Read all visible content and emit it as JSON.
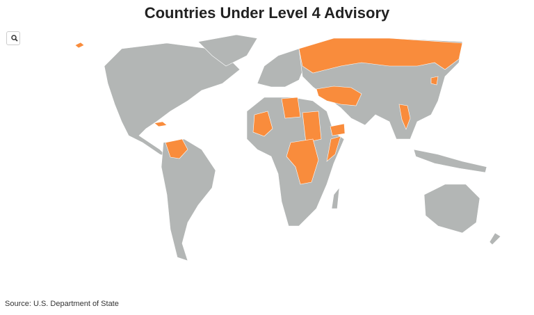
{
  "title": "Countries Under Level 4 Advisory",
  "source": "Source: U.S. Department of State"
}
